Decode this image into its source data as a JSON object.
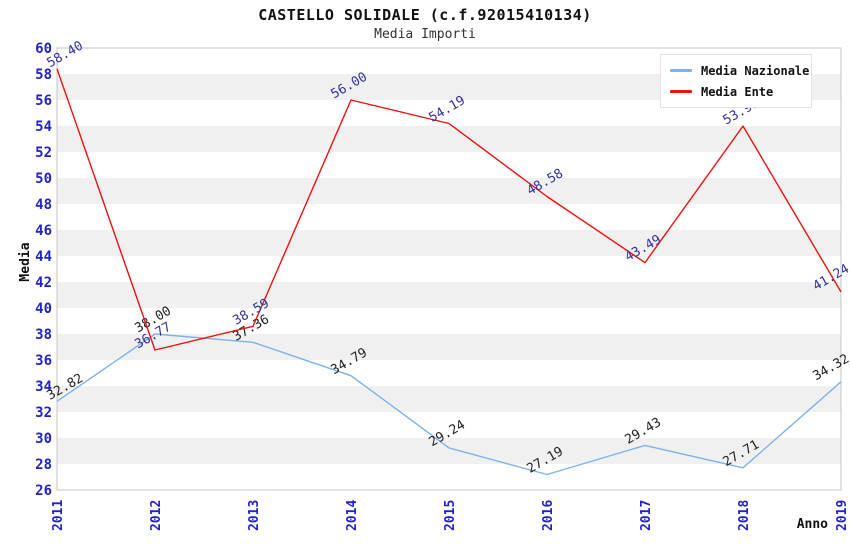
{
  "title": "CASTELLO SOLIDALE (c.f.92015410134)",
  "subtitle": "Media Importi",
  "legend": {
    "items": [
      {
        "label": "Media Nazionale",
        "color": "#7fb2e5"
      },
      {
        "label": "Media Ente",
        "color": "#ee1111"
      }
    ]
  },
  "colors": {
    "tick_label": "#2222cc",
    "band_fill": "#f0f0f0",
    "band_alt_fill": "#ffffff",
    "plot_border": "#c4c4c4",
    "axis_title": "#111111"
  },
  "chart_data": {
    "type": "line",
    "title": "CASTELLO SOLIDALE (c.f.92015410134)",
    "subtitle": "Media Importi",
    "xlabel": "Anno",
    "ylabel": "Media",
    "x": [
      2011,
      2012,
      2013,
      2014,
      2015,
      2016,
      2017,
      2018,
      2019
    ],
    "series": [
      {
        "name": "Media Nazionale",
        "color": "#7fb2e5",
        "label_color": "#222222",
        "values": [
          32.82,
          38.0,
          37.36,
          34.79,
          29.24,
          27.19,
          29.43,
          27.71,
          34.32
        ]
      },
      {
        "name": "Media Ente",
        "color": "#ee1111",
        "label_color": "#333399",
        "values": [
          58.4,
          36.77,
          38.59,
          56.0,
          54.19,
          48.58,
          43.49,
          53.99,
          41.24
        ]
      }
    ],
    "ylim": [
      26,
      60
    ],
    "ytick_step": 2,
    "grid": "horizontal-alternating-bands",
    "legend_position": "top-right"
  }
}
